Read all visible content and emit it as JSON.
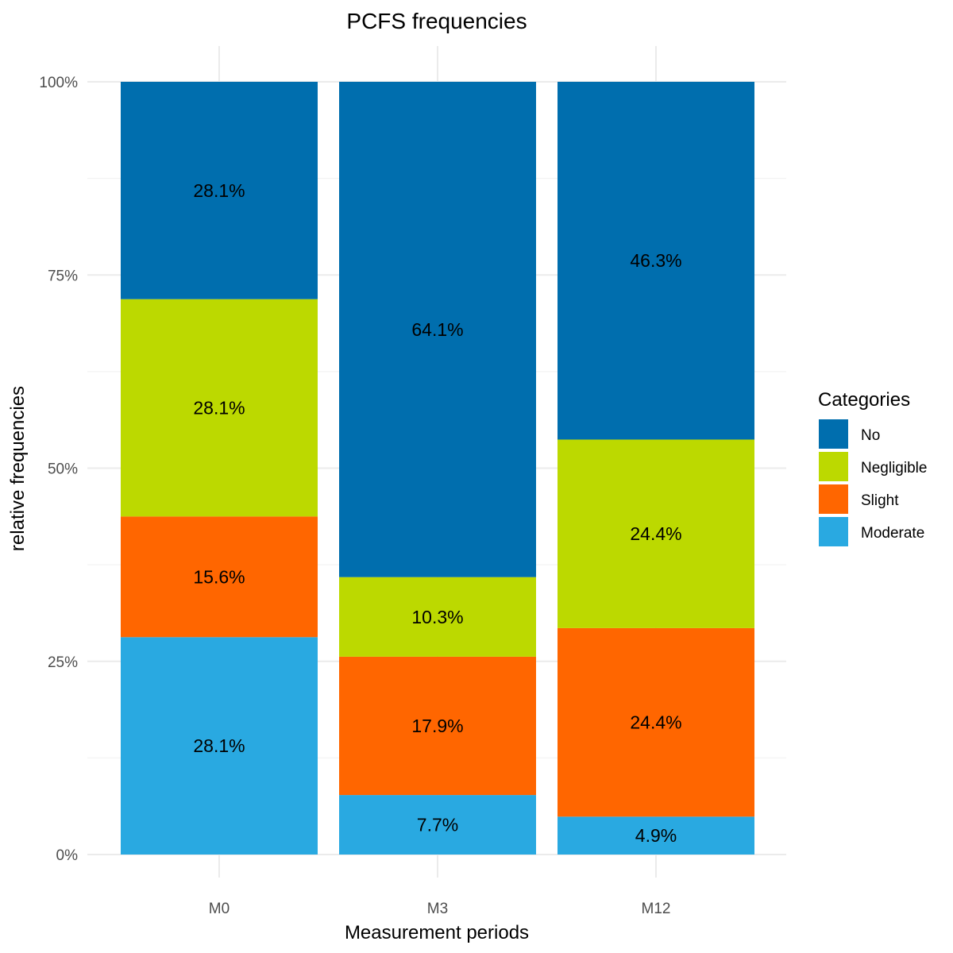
{
  "chart_data": {
    "type": "bar",
    "stacked": true,
    "title": "PCFS frequencies",
    "xlabel": "Measurement periods",
    "ylabel": "relative frequencies",
    "categories": [
      "M0",
      "M3",
      "M12"
    ],
    "y_ticks": [
      0,
      25,
      50,
      75,
      100
    ],
    "y_tick_labels": [
      "0%",
      "25%",
      "50%",
      "75%",
      "100%"
    ],
    "ylim": [
      0,
      100
    ],
    "grid": true,
    "legend": {
      "title": "Categories",
      "position": "right"
    },
    "series": [
      {
        "name": "Moderate",
        "color": "#29a9e1",
        "values": [
          28.1,
          7.7,
          4.9
        ],
        "labels": [
          "28.1%",
          "7.7%",
          "4.9%"
        ]
      },
      {
        "name": "Slight",
        "color": "#ff6600",
        "values": [
          15.6,
          17.9,
          24.4
        ],
        "labels": [
          "15.6%",
          "17.9%",
          "24.4%"
        ]
      },
      {
        "name": "Negligible",
        "color": "#bcd900",
        "values": [
          28.1,
          10.3,
          24.4
        ],
        "labels": [
          "28.1%",
          "10.3%",
          "24.4%"
        ]
      },
      {
        "name": "No",
        "color": "#006eae",
        "values": [
          28.1,
          64.1,
          46.3
        ],
        "labels": [
          "28.1%",
          "64.1%",
          "46.3%"
        ]
      }
    ],
    "legend_order": [
      "No",
      "Negligible",
      "Slight",
      "Moderate"
    ]
  }
}
